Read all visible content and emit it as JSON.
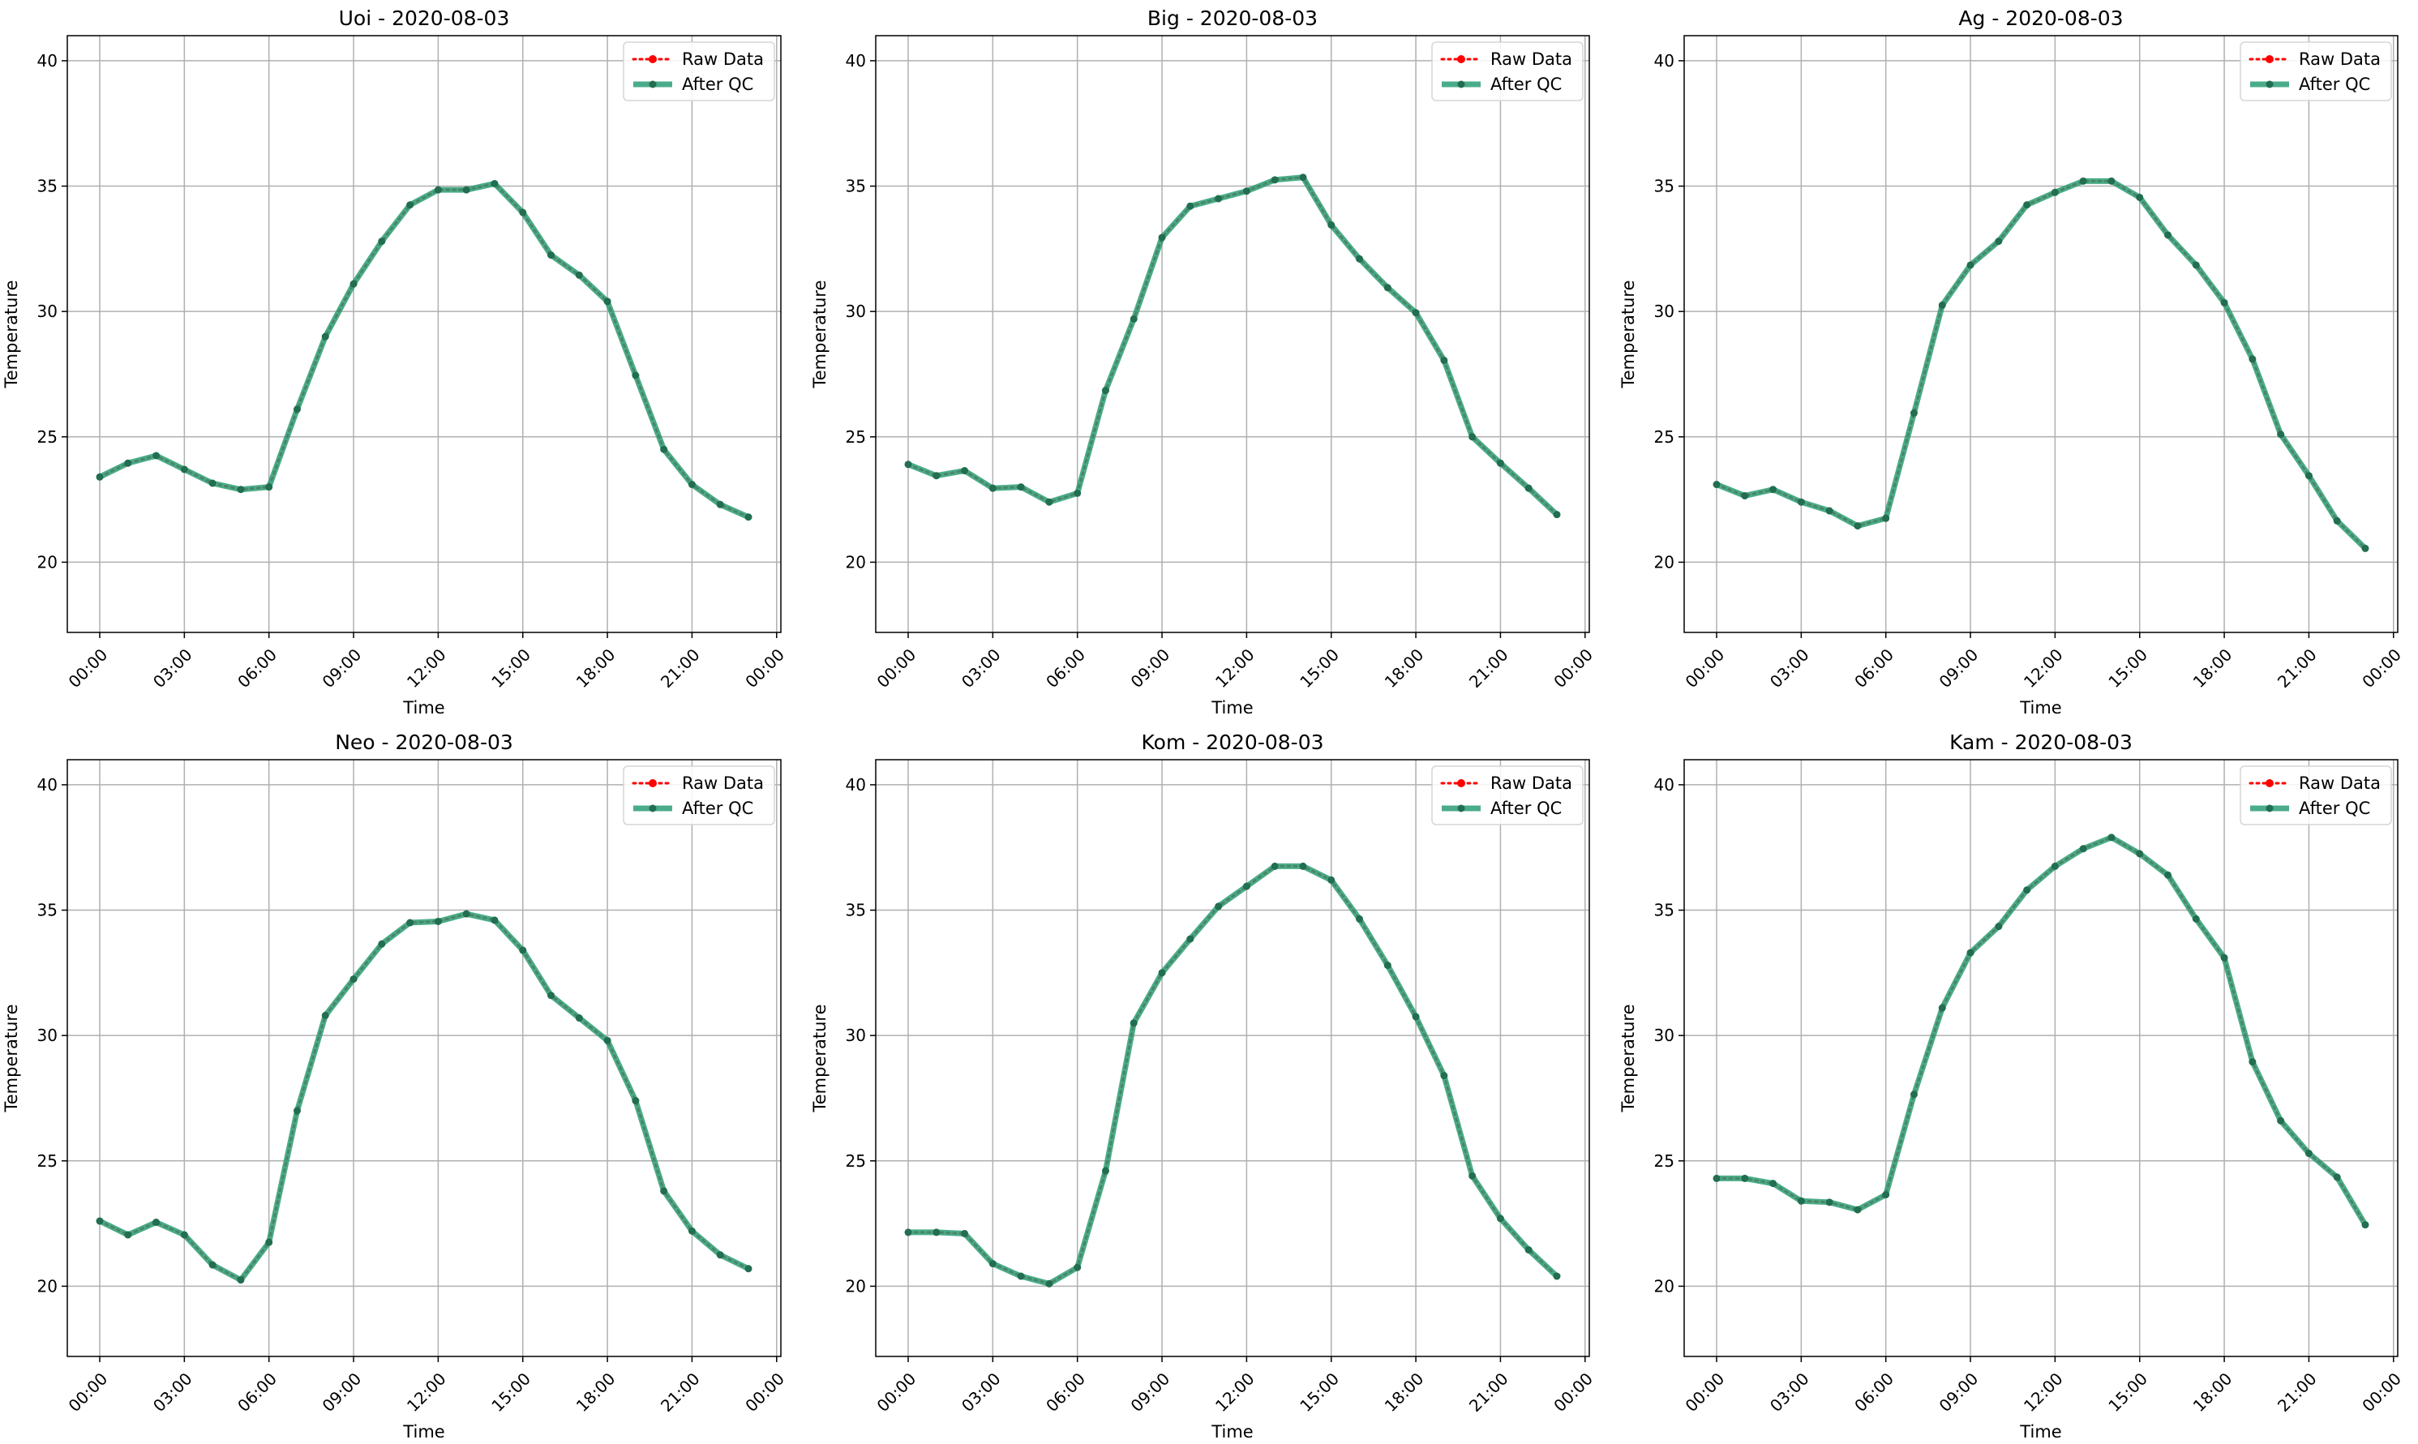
{
  "chart_data": [
    {
      "type": "line",
      "title": "Uoi - 2020-08-03",
      "xlabel": "Time",
      "ylabel": "Temperature",
      "ylim": [
        17.2,
        41.0
      ],
      "xlim": [
        -1.15,
        24.15
      ],
      "yticks": [
        20,
        25,
        30,
        35,
        40
      ],
      "xticks": [
        0,
        3,
        6,
        9,
        12,
        15,
        18,
        21,
        24
      ],
      "xtick_labels": [
        "00:00",
        "03:00",
        "06:00",
        "09:00",
        "12:00",
        "15:00",
        "18:00",
        "21:00",
        "00:00"
      ],
      "grid": true,
      "legend": "top-right",
      "series": [
        {
          "name": "Raw Data",
          "color": "#ff0000",
          "x": [
            0,
            1,
            2,
            3,
            4,
            5,
            6,
            7,
            8,
            9,
            10,
            11,
            12,
            13,
            14,
            15,
            16,
            17,
            18,
            19,
            20,
            21,
            22,
            23
          ],
          "values": [
            23.4,
            23.95,
            24.25,
            23.7,
            23.15,
            22.9,
            23.0,
            26.1,
            29.0,
            31.1,
            32.8,
            34.25,
            34.85,
            34.85,
            35.1,
            33.95,
            32.25,
            31.45,
            30.4,
            27.45,
            24.5,
            23.1,
            22.3,
            21.8
          ]
        },
        {
          "name": "After QC",
          "color": "#2a9d75",
          "x": [
            0,
            1,
            2,
            3,
            4,
            5,
            6,
            7,
            8,
            9,
            10,
            11,
            12,
            13,
            14,
            15,
            16,
            17,
            18,
            19,
            20,
            21,
            22,
            23
          ],
          "values": [
            23.4,
            23.95,
            24.25,
            23.7,
            23.15,
            22.9,
            23.0,
            26.1,
            29.0,
            31.1,
            32.8,
            34.25,
            34.85,
            34.85,
            35.1,
            33.95,
            32.25,
            31.45,
            30.4,
            27.45,
            24.5,
            23.1,
            22.3,
            21.8
          ]
        }
      ]
    },
    {
      "type": "line",
      "title": "Big - 2020-08-03",
      "xlabel": "Time",
      "ylabel": "Temperature",
      "ylim": [
        17.2,
        41.0
      ],
      "xlim": [
        -1.15,
        24.15
      ],
      "yticks": [
        20,
        25,
        30,
        35,
        40
      ],
      "xticks": [
        0,
        3,
        6,
        9,
        12,
        15,
        18,
        21,
        24
      ],
      "xtick_labels": [
        "00:00",
        "03:00",
        "06:00",
        "09:00",
        "12:00",
        "15:00",
        "18:00",
        "21:00",
        "00:00"
      ],
      "grid": true,
      "legend": "top-right",
      "series": [
        {
          "name": "Raw Data",
          "color": "#ff0000",
          "x": [
            0,
            1,
            2,
            3,
            4,
            5,
            6,
            7,
            8,
            9,
            10,
            11,
            12,
            13,
            14,
            15,
            16,
            17,
            18,
            19,
            20,
            21,
            22,
            23
          ],
          "values": [
            23.9,
            23.45,
            23.65,
            22.95,
            23.0,
            22.4,
            22.75,
            26.85,
            29.7,
            32.95,
            34.2,
            34.5,
            34.8,
            35.25,
            35.35,
            33.45,
            32.1,
            30.95,
            29.95,
            28.05,
            25.0,
            23.95,
            22.95,
            21.9
          ]
        },
        {
          "name": "After QC",
          "color": "#2a9d75",
          "x": [
            0,
            1,
            2,
            3,
            4,
            5,
            6,
            7,
            8,
            9,
            10,
            11,
            12,
            13,
            14,
            15,
            16,
            17,
            18,
            19,
            20,
            21,
            22,
            23
          ],
          "values": [
            23.9,
            23.45,
            23.65,
            22.95,
            23.0,
            22.4,
            22.75,
            26.85,
            29.7,
            32.95,
            34.2,
            34.5,
            34.8,
            35.25,
            35.35,
            33.45,
            32.1,
            30.95,
            29.95,
            28.05,
            25.0,
            23.95,
            22.95,
            21.9
          ]
        }
      ]
    },
    {
      "type": "line",
      "title": "Ag - 2020-08-03",
      "xlabel": "Time",
      "ylabel": "Temperature",
      "ylim": [
        17.2,
        41.0
      ],
      "xlim": [
        -1.15,
        24.15
      ],
      "yticks": [
        20,
        25,
        30,
        35,
        40
      ],
      "xticks": [
        0,
        3,
        6,
        9,
        12,
        15,
        18,
        21,
        24
      ],
      "xtick_labels": [
        "00:00",
        "03:00",
        "06:00",
        "09:00",
        "12:00",
        "15:00",
        "18:00",
        "21:00",
        "00:00"
      ],
      "grid": true,
      "legend": "top-right",
      "series": [
        {
          "name": "Raw Data",
          "color": "#ff0000",
          "x": [
            0,
            1,
            2,
            3,
            4,
            5,
            6,
            7,
            8,
            9,
            10,
            11,
            12,
            13,
            14,
            15,
            16,
            17,
            18,
            19,
            20,
            21,
            22,
            23
          ],
          "values": [
            23.1,
            22.65,
            22.9,
            22.4,
            22.05,
            21.45,
            21.75,
            25.95,
            30.25,
            31.85,
            32.8,
            34.25,
            34.75,
            35.2,
            35.2,
            34.55,
            33.05,
            31.85,
            30.35,
            28.1,
            25.1,
            23.45,
            21.65,
            20.55
          ]
        },
        {
          "name": "After QC",
          "color": "#2a9d75",
          "x": [
            0,
            1,
            2,
            3,
            4,
            5,
            6,
            7,
            8,
            9,
            10,
            11,
            12,
            13,
            14,
            15,
            16,
            17,
            18,
            19,
            20,
            21,
            22,
            23
          ],
          "values": [
            23.1,
            22.65,
            22.9,
            22.4,
            22.05,
            21.45,
            21.75,
            25.95,
            30.25,
            31.85,
            32.8,
            34.25,
            34.75,
            35.2,
            35.2,
            34.55,
            33.05,
            31.85,
            30.35,
            28.1,
            25.1,
            23.45,
            21.65,
            20.55
          ]
        }
      ]
    },
    {
      "type": "line",
      "title": "Neo - 2020-08-03",
      "xlabel": "Time",
      "ylabel": "Temperature",
      "ylim": [
        17.2,
        41.0
      ],
      "xlim": [
        -1.15,
        24.15
      ],
      "yticks": [
        20,
        25,
        30,
        35,
        40
      ],
      "xticks": [
        0,
        3,
        6,
        9,
        12,
        15,
        18,
        21,
        24
      ],
      "xtick_labels": [
        "00:00",
        "03:00",
        "06:00",
        "09:00",
        "12:00",
        "15:00",
        "18:00",
        "21:00",
        "00:00"
      ],
      "grid": true,
      "legend": "top-right",
      "series": [
        {
          "name": "Raw Data",
          "color": "#ff0000",
          "x": [
            0,
            1,
            2,
            3,
            4,
            5,
            6,
            7,
            8,
            9,
            10,
            11,
            12,
            13,
            14,
            15,
            16,
            17,
            18,
            19,
            20,
            21,
            22,
            23
          ],
          "values": [
            22.6,
            22.05,
            22.55,
            22.05,
            20.85,
            20.25,
            21.75,
            27.0,
            30.8,
            32.25,
            33.65,
            34.5,
            34.55,
            34.85,
            34.6,
            33.4,
            31.6,
            30.7,
            29.8,
            27.4,
            23.8,
            22.2,
            21.25,
            20.7
          ]
        },
        {
          "name": "After QC",
          "color": "#2a9d75",
          "x": [
            0,
            1,
            2,
            3,
            4,
            5,
            6,
            7,
            8,
            9,
            10,
            11,
            12,
            13,
            14,
            15,
            16,
            17,
            18,
            19,
            20,
            21,
            22,
            23
          ],
          "values": [
            22.6,
            22.05,
            22.55,
            22.05,
            20.85,
            20.25,
            21.75,
            27.0,
            30.8,
            32.25,
            33.65,
            34.5,
            34.55,
            34.85,
            34.6,
            33.4,
            31.6,
            30.7,
            29.8,
            27.4,
            23.8,
            22.2,
            21.25,
            20.7
          ]
        }
      ]
    },
    {
      "type": "line",
      "title": "Kom - 2020-08-03",
      "xlabel": "Time",
      "ylabel": "Temperature",
      "ylim": [
        17.2,
        41.0
      ],
      "xlim": [
        -1.15,
        24.15
      ],
      "yticks": [
        20,
        25,
        30,
        35,
        40
      ],
      "xticks": [
        0,
        3,
        6,
        9,
        12,
        15,
        18,
        21,
        24
      ],
      "xtick_labels": [
        "00:00",
        "03:00",
        "06:00",
        "09:00",
        "12:00",
        "15:00",
        "18:00",
        "21:00",
        "00:00"
      ],
      "grid": true,
      "legend": "top-right",
      "series": [
        {
          "name": "Raw Data",
          "color": "#ff0000",
          "x": [
            0,
            1,
            2,
            3,
            4,
            5,
            6,
            7,
            8,
            9,
            10,
            11,
            12,
            13,
            14,
            15,
            16,
            17,
            18,
            19,
            20,
            21,
            22,
            23
          ],
          "values": [
            22.15,
            22.15,
            22.1,
            20.9,
            20.4,
            20.1,
            20.75,
            24.6,
            30.5,
            32.5,
            33.85,
            35.15,
            35.95,
            36.75,
            36.75,
            36.2,
            34.65,
            32.8,
            30.75,
            28.4,
            24.4,
            22.7,
            21.45,
            20.4
          ]
        },
        {
          "name": "After QC",
          "color": "#2a9d75",
          "x": [
            0,
            1,
            2,
            3,
            4,
            5,
            6,
            7,
            8,
            9,
            10,
            11,
            12,
            13,
            14,
            15,
            16,
            17,
            18,
            19,
            20,
            21,
            22,
            23
          ],
          "values": [
            22.15,
            22.15,
            22.1,
            20.9,
            20.4,
            20.1,
            20.75,
            24.6,
            30.5,
            32.5,
            33.85,
            35.15,
            35.95,
            36.75,
            36.75,
            36.2,
            34.65,
            32.8,
            30.75,
            28.4,
            24.4,
            22.7,
            21.45,
            20.4
          ]
        }
      ]
    },
    {
      "type": "line",
      "title": "Kam - 2020-08-03",
      "xlabel": "Time",
      "ylabel": "Temperature",
      "ylim": [
        17.2,
        41.0
      ],
      "xlim": [
        -1.15,
        24.15
      ],
      "yticks": [
        20,
        25,
        30,
        35,
        40
      ],
      "xticks": [
        0,
        3,
        6,
        9,
        12,
        15,
        18,
        21,
        24
      ],
      "xtick_labels": [
        "00:00",
        "03:00",
        "06:00",
        "09:00",
        "12:00",
        "15:00",
        "18:00",
        "21:00",
        "00:00"
      ],
      "grid": true,
      "legend": "top-right",
      "series": [
        {
          "name": "Raw Data",
          "color": "#ff0000",
          "x": [
            0,
            1,
            2,
            3,
            4,
            5,
            6,
            7,
            8,
            9,
            10,
            11,
            12,
            13,
            14,
            15,
            16,
            17,
            18,
            19,
            20,
            21,
            22,
            23
          ],
          "values": [
            24.3,
            24.3,
            24.1,
            23.4,
            23.35,
            23.05,
            23.65,
            27.65,
            31.1,
            33.3,
            34.35,
            35.8,
            36.75,
            37.45,
            37.9,
            37.25,
            36.4,
            34.65,
            33.1,
            28.95,
            26.6,
            25.3,
            24.35,
            22.45
          ]
        },
        {
          "name": "After QC",
          "color": "#2a9d75",
          "x": [
            0,
            1,
            2,
            3,
            4,
            5,
            6,
            7,
            8,
            9,
            10,
            11,
            12,
            13,
            14,
            15,
            16,
            17,
            18,
            19,
            20,
            21,
            22,
            23
          ],
          "values": [
            24.3,
            24.3,
            24.1,
            23.4,
            23.35,
            23.05,
            23.65,
            27.65,
            31.1,
            33.3,
            34.35,
            35.8,
            36.75,
            37.45,
            37.9,
            37.25,
            36.4,
            34.65,
            33.1,
            28.95,
            26.6,
            25.3,
            24.35,
            22.45
          ]
        }
      ]
    }
  ]
}
